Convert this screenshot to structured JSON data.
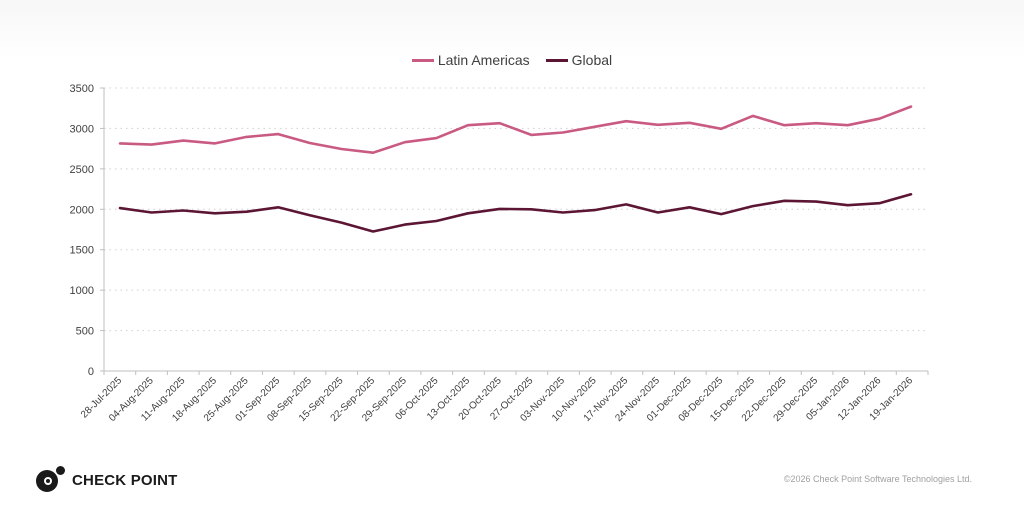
{
  "chart_data": {
    "type": "line",
    "title": "",
    "xlabel": "",
    "ylabel": "",
    "ylim": [
      0,
      3500
    ],
    "yticks": [
      0,
      500,
      1000,
      1500,
      2000,
      2500,
      3000,
      3500
    ],
    "grid": true,
    "legend_position": "top-center",
    "categories": [
      "28-Jul-2025",
      "04-Aug-2025",
      "11-Aug-2025",
      "18-Aug-2025",
      "25-Aug-2025",
      "01-Sep-2025",
      "08-Sep-2025",
      "15-Sep-2025",
      "22-Sep-2025",
      "29-Sep-2025",
      "06-Oct-2025",
      "13-Oct-2025",
      "20-Oct-2025",
      "27-Oct-2025",
      "03-Nov-2025",
      "10-Nov-2025",
      "17-Nov-2025",
      "24-Nov-2025",
      "01-Dec-2025",
      "08-Dec-2025",
      "15-Dec-2025",
      "22-Dec-2025",
      "29-Dec-2025",
      "05-Jan-2026",
      "12-Jan-2026",
      "19-Jan-2026"
    ],
    "series": [
      {
        "name": "Latin Americas",
        "color": "#c95a82",
        "values": [
          2815,
          2800,
          2850,
          2815,
          2895,
          2930,
          2820,
          2745,
          2700,
          2830,
          2880,
          3040,
          3065,
          2920,
          2950,
          3020,
          3090,
          3045,
          3070,
          2995,
          3155,
          3040,
          3065,
          3040,
          3120,
          3270
        ]
      },
      {
        "name": "Global",
        "color": "#5c1634",
        "values": [
          2015,
          1960,
          1985,
          1950,
          1970,
          2025,
          1925,
          1835,
          1725,
          1810,
          1855,
          1950,
          2005,
          2000,
          1960,
          1990,
          2060,
          1960,
          2025,
          1940,
          2040,
          2105,
          2095,
          2050,
          2075,
          2185
        ]
      }
    ]
  },
  "footer": {
    "logo_text": "CHECK POINT",
    "copyright": "©2026 Check Point Software Technologies Ltd."
  }
}
